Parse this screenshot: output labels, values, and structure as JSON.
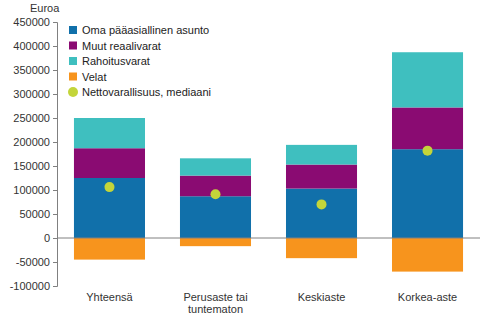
{
  "chart_data": {
    "type": "bar",
    "stacked": true,
    "y_label": "Euroa",
    "categories": [
      "Yhteensä",
      "Perusaste tai tuntematon",
      "Keskiaste",
      "Korkea-aste"
    ],
    "ylim": [
      -100000,
      450000
    ],
    "yticks": [
      -100000,
      -50000,
      0,
      50000,
      100000,
      150000,
      200000,
      250000,
      300000,
      350000,
      400000,
      450000
    ],
    "grid": false,
    "legend": "top-left",
    "series": [
      {
        "name": "Oma pääasiallinen asunto",
        "type": "bar",
        "color": "#1170aa",
        "values": [
          125000,
          87000,
          103000,
          185000
        ]
      },
      {
        "name": "Muut reaalivarat",
        "type": "bar",
        "color": "#8a0b72",
        "values": [
          62000,
          43000,
          50000,
          87000
        ]
      },
      {
        "name": "Rahoitusvarat",
        "type": "bar",
        "color": "#3fbfbf",
        "values": [
          63000,
          36000,
          41000,
          115000
        ]
      },
      {
        "name": "Velat",
        "type": "bar",
        "color": "#f7941d",
        "values": [
          -45000,
          -17000,
          -42000,
          -70000
        ]
      },
      {
        "name": "Nettovarallisuus, mediaani",
        "type": "scatter",
        "marker": "circle",
        "color": "#c3d53a",
        "values": [
          106000,
          91000,
          70000,
          182000
        ]
      }
    ]
  }
}
